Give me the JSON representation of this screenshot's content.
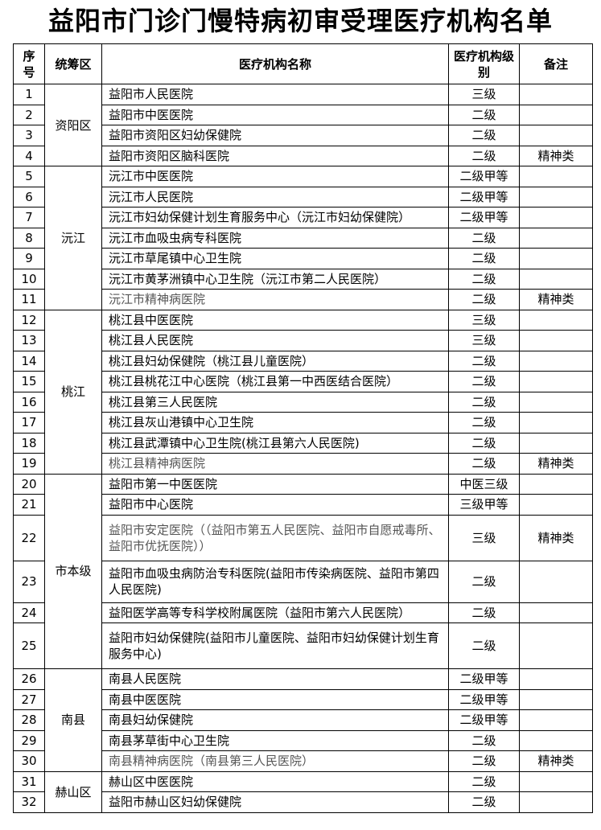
{
  "title": "益阳市门诊门慢特病初审受理医疗机构名单",
  "headers": {
    "seq": "序号",
    "region": "统筹区",
    "name": "医疗机构名称",
    "level": "医疗机构级别",
    "note": "备注"
  },
  "regions": [
    {
      "label": "资阳区",
      "rows": [
        {
          "seq": "1",
          "name": "益阳市人民医院",
          "level": "三级",
          "note": ""
        },
        {
          "seq": "2",
          "name": "益阳市中医医院",
          "level": "二级",
          "note": ""
        },
        {
          "seq": "3",
          "name": "益阳市资阳区妇幼保健院",
          "level": "二级",
          "note": ""
        },
        {
          "seq": "4",
          "name": "益阳市资阳区脑科医院",
          "level": "二级",
          "note": "精神类"
        }
      ]
    },
    {
      "label": "沅江",
      "rows": [
        {
          "seq": "5",
          "name": "沅江市中医医院",
          "level": "二级甲等",
          "note": ""
        },
        {
          "seq": "6",
          "name": "沅江市人民医院",
          "level": "二级甲等",
          "note": ""
        },
        {
          "seq": "7",
          "name": "沅江市妇幼保健计划生育服务中心（沅江市妇幼保健院）",
          "level": "二级甲等",
          "note": ""
        },
        {
          "seq": "8",
          "name": "沅江市血吸虫病专科医院",
          "level": "二级",
          "note": ""
        },
        {
          "seq": "9",
          "name": "沅江市草尾镇中心卫生院",
          "level": "二级",
          "note": ""
        },
        {
          "seq": "10",
          "name": "沅江市黄茅洲镇中心卫生院（沅江市第二人民医院）",
          "level": "二级",
          "note": ""
        },
        {
          "seq": "11",
          "name": "沅江市精神病医院",
          "level": "二级",
          "note": "精神类"
        }
      ]
    },
    {
      "label": "桃江",
      "rows": [
        {
          "seq": "12",
          "name": "桃江县中医医院",
          "level": "三级",
          "note": ""
        },
        {
          "seq": "13",
          "name": "桃江县人民医院",
          "level": "三级",
          "note": ""
        },
        {
          "seq": "14",
          "name": "桃江县妇幼保健院（桃江县儿童医院）",
          "level": "二级",
          "note": ""
        },
        {
          "seq": "15",
          "name": "桃江县桃花江中心医院（桃江县第一中西医结合医院）",
          "level": "二级",
          "note": ""
        },
        {
          "seq": "16",
          "name": "桃江县第三人民医院",
          "level": "二级",
          "note": ""
        },
        {
          "seq": "17",
          "name": "桃江县灰山港镇中心卫生院",
          "level": "二级",
          "note": ""
        },
        {
          "seq": "18",
          "name": "桃江县武潭镇中心卫生院(桃江县第六人民医院)",
          "level": "二级",
          "note": ""
        },
        {
          "seq": "19",
          "name": "桃江县精神病医院",
          "level": "二级",
          "note": "精神类"
        }
      ]
    },
    {
      "label": "市本级",
      "rows": [
        {
          "seq": "20",
          "name": "益阳市第一中医医院",
          "level": "中医三级",
          "note": ""
        },
        {
          "seq": "21",
          "name": "益阳市中心医院",
          "level": "三级甲等",
          "note": ""
        },
        {
          "seq": "22",
          "name": "益阳市安定医院（（益阳市第五人民医院、益阳市自愿戒毒所、益阳市优抚医院））",
          "level": "三级",
          "note": "精神类"
        },
        {
          "seq": "23",
          "name": "益阳市血吸虫病防治专科医院(益阳市传染病医院、益阳市第四人民医院)",
          "level": "二级",
          "note": ""
        },
        {
          "seq": "24",
          "name": "益阳医学高等专科学校附属医院（益阳市第六人民医院）",
          "level": "二级",
          "note": ""
        },
        {
          "seq": "25",
          "name": "益阳市妇幼保健院(益阳市儿童医院、益阳市妇幼保健计划生育服务中心)",
          "level": "二级",
          "note": ""
        }
      ]
    },
    {
      "label": "南县",
      "rows": [
        {
          "seq": "26",
          "name": "南县人民医院",
          "level": "二级甲等",
          "note": ""
        },
        {
          "seq": "27",
          "name": "南县中医医院",
          "level": "二级甲等",
          "note": ""
        },
        {
          "seq": "28",
          "name": "南县妇幼保健院",
          "level": "二级甲等",
          "note": ""
        },
        {
          "seq": "29",
          "name": "南县茅草街中心卫生院",
          "level": "二级",
          "note": ""
        },
        {
          "seq": "30",
          "name": "南县精神病医院（南县第三人民医院）",
          "level": "二级",
          "note": "精神类"
        }
      ]
    },
    {
      "label": "赫山区",
      "rows": [
        {
          "seq": "31",
          "name": "赫山区中医医院",
          "level": "二级",
          "note": ""
        },
        {
          "seq": "32",
          "name": "益阳市赫山区妇幼保健院",
          "level": "二级",
          "note": ""
        }
      ]
    }
  ]
}
